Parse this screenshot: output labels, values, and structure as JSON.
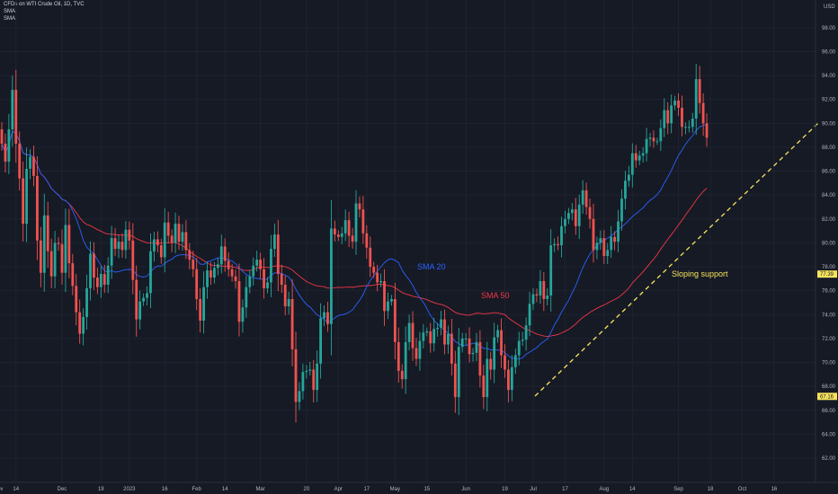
{
  "header": {
    "title": "CFDs on WTI Crude Oil, 1D, TVC",
    "indicator_1": "SMA",
    "indicator_2": "SMA"
  },
  "colors": {
    "background": "#161a25",
    "grid": "#1f2331",
    "up": "#26a69a",
    "down": "#ef5350",
    "sma20": "#2962ff",
    "sma50": "#f23645",
    "support": "#f7e45c",
    "axis_text": "#b2b5be"
  },
  "chart_data": {
    "type": "candlestick",
    "currency_label": "USD",
    "y_axis": {
      "ylim": [
        60,
        99
      ],
      "ticks": [
        "62.00",
        "64.00",
        "66.00",
        "68.00",
        "70.00",
        "72.00",
        "74.00",
        "76.00",
        "78.00",
        "80.00",
        "82.00",
        "84.00",
        "86.00",
        "88.00",
        "90.00",
        "92.00",
        "94.00",
        "96.00",
        "98.00"
      ]
    },
    "x_axis": {
      "ticks": [
        {
          "label": "Nov",
          "i": -1
        },
        {
          "label": "14",
          "i": 4
        },
        {
          "label": "Dec",
          "i": 17
        },
        {
          "label": "19",
          "i": 28
        },
        {
          "label": "2023",
          "i": 36
        },
        {
          "label": "16",
          "i": 46
        },
        {
          "label": "Feb",
          "i": 55
        },
        {
          "label": "14",
          "i": 63
        },
        {
          "label": "Mar",
          "i": 73
        },
        {
          "label": "20",
          "i": 86
        },
        {
          "label": "Apr",
          "i": 95
        },
        {
          "label": "17",
          "i": 103
        },
        {
          "label": "May",
          "i": 111
        },
        {
          "label": "15",
          "i": 120
        },
        {
          "label": "Jun",
          "i": 131
        },
        {
          "label": "19",
          "i": 142
        },
        {
          "label": "Jul",
          "i": 150
        },
        {
          "label": "17",
          "i": 159
        },
        {
          "label": "Aug",
          "i": 170
        },
        {
          "label": "14",
          "i": 178
        },
        {
          "label": "Sep",
          "i": 191
        },
        {
          "label": "18",
          "i": 200
        },
        {
          "label": "Oct",
          "i": 209
        },
        {
          "label": "16",
          "i": 218
        }
      ]
    },
    "price_badges": [
      {
        "value": 77.39,
        "label": "77.39"
      },
      {
        "value": 67.16,
        "label": "67.16"
      }
    ],
    "candles_close": [
      88.3,
      86.8,
      89.5,
      92.8,
      88.3,
      85.4,
      81.6,
      86.2,
      87.2,
      85.6,
      80.2,
      77.5,
      82.3,
      79.3,
      77.2,
      80.0,
      79.9,
      77.5,
      81.5,
      78.3,
      76.4,
      74.2,
      72.4,
      73.8,
      76.2,
      79.1,
      77.1,
      76.3,
      77.4,
      76.5,
      78.1,
      80.4,
      79.5,
      80.1,
      79.4,
      81.1,
      80.2,
      76.9,
      73.6,
      75.1,
      75.4,
      75.8,
      79.3,
      80.3,
      79.8,
      78.8,
      81.7,
      80.6,
      80.0,
      81.6,
      80.1,
      80.9,
      79.4,
      78.6,
      77.8,
      75.3,
      73.5,
      76.3,
      77.7,
      77.1,
      77.9,
      78.2,
      79.7,
      78.5,
      77.8,
      77.2,
      76.8,
      73.4,
      74.6,
      76.3,
      77.2,
      78.1,
      78.6,
      77.8,
      76.2,
      76.7,
      79.5,
      80.7,
      77.4,
      76.5,
      74.7,
      75.3,
      71.1,
      66.7,
      67.6,
      69.2,
      69.3,
      69.4,
      67.7,
      69.9,
      73.7,
      74.2,
      73.2,
      81.2,
      80.7,
      80.5,
      80.8,
      81.9,
      80.6,
      80.1,
      83.3,
      82.8,
      80.8,
      79.6,
      78.0,
      77.5,
      76.7,
      76.8,
      74.3,
      75.1,
      75.3,
      71.7,
      69.3,
      68.6,
      71.7,
      73.3,
      71.2,
      70.3,
      71.8,
      72.5,
      72.6,
      71.6,
      72.8,
      72.9,
      73.6,
      71.5,
      72.4,
      69.9,
      67.1,
      71.3,
      72.0,
      72.0,
      70.7,
      70.8,
      71.7,
      68.9,
      67.1,
      70.3,
      69.4,
      72.1,
      72.7,
      70.6,
      69.4,
      67.7,
      69.6,
      70.6,
      71.8,
      71.9,
      73.1,
      74.9,
      75.7,
      75.6,
      76.8,
      75.3,
      75.6,
      79.8,
      79.9,
      79.8,
      81.4,
      82.0,
      82.5,
      82.8,
      81.4,
      83.2,
      84.4,
      83.0,
      82.0,
      79.4,
      80.0,
      80.4,
      78.9,
      79.4,
      80.5,
      80.1,
      81.8,
      83.7,
      85.2,
      85.7,
      87.5,
      86.9,
      87.3,
      87.5,
      88.7,
      88.8,
      88.5,
      88.5,
      89.6,
      91.1,
      90.0,
      91.5,
      91.9,
      91.3,
      89.7,
      89.7,
      89.7,
      90.4,
      93.7,
      91.7,
      90.0,
      88.8
    ]
  },
  "annotations": {
    "sma20_label": "SMA 20",
    "sma50_label": "SMA 50",
    "support_label": "Sloping support"
  }
}
